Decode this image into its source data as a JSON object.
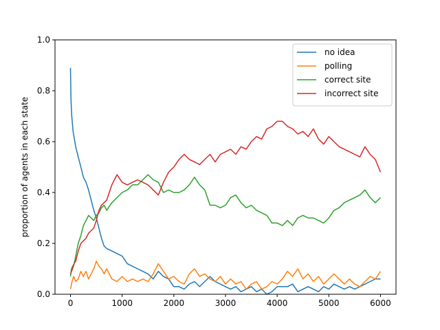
{
  "chart_data": {
    "type": "line",
    "title": "",
    "xlabel": "",
    "ylabel": "proportion of agents in each state",
    "xlim": [
      -300,
      6300
    ],
    "ylim": [
      0.0,
      1.0
    ],
    "xticks": [
      0,
      1000,
      2000,
      3000,
      4000,
      5000,
      6000
    ],
    "yticks": [
      0.0,
      0.2,
      0.4,
      0.6,
      0.8,
      1.0
    ],
    "xtick_labels": [
      "0",
      "1000",
      "2000",
      "3000",
      "4000",
      "5000",
      "6000"
    ],
    "ytick_labels": [
      "0.0",
      "0.2",
      "0.4",
      "0.6",
      "0.8",
      "1.0"
    ],
    "grid": false,
    "legend_position": "top-right",
    "series": [
      {
        "name": "no idea",
        "color": "#1f77b4",
        "x": [
          0,
          10,
          25,
          50,
          75,
          100,
          150,
          200,
          250,
          300,
          350,
          400,
          450,
          500,
          550,
          600,
          650,
          700,
          800,
          900,
          1000,
          1100,
          1200,
          1300,
          1400,
          1500,
          1600,
          1700,
          1800,
          1900,
          2000,
          2100,
          2200,
          2300,
          2400,
          2500,
          2600,
          2700,
          2800,
          2900,
          3000,
          3100,
          3200,
          3300,
          3400,
          3500,
          3600,
          3700,
          3800,
          3900,
          4000,
          4100,
          4200,
          4300,
          4400,
          4500,
          4600,
          4700,
          4800,
          4900,
          5000,
          5100,
          5200,
          5300,
          5400,
          5500,
          5600,
          5700,
          5800,
          5900,
          6000
        ],
        "y": [
          0.89,
          0.76,
          0.7,
          0.64,
          0.61,
          0.58,
          0.54,
          0.5,
          0.46,
          0.44,
          0.41,
          0.37,
          0.33,
          0.3,
          0.26,
          0.22,
          0.19,
          0.18,
          0.17,
          0.16,
          0.15,
          0.12,
          0.11,
          0.1,
          0.09,
          0.08,
          0.06,
          0.09,
          0.07,
          0.06,
          0.03,
          0.03,
          0.02,
          0.04,
          0.05,
          0.03,
          0.05,
          0.07,
          0.05,
          0.04,
          0.03,
          0.02,
          0.03,
          0.01,
          0.02,
          0.03,
          0.01,
          0.02,
          0.0,
          0.01,
          0.03,
          0.03,
          0.03,
          0.04,
          0.01,
          0.02,
          0.03,
          0.02,
          0.01,
          0.03,
          0.02,
          0.04,
          0.03,
          0.02,
          0.03,
          0.02,
          0.03,
          0.04,
          0.05,
          0.06,
          0.06
        ]
      },
      {
        "name": "polling",
        "color": "#ff7f0e",
        "x": [
          0,
          30,
          60,
          100,
          150,
          200,
          250,
          300,
          350,
          400,
          450,
          500,
          550,
          600,
          650,
          700,
          800,
          900,
          1000,
          1100,
          1200,
          1300,
          1400,
          1500,
          1600,
          1700,
          1800,
          1900,
          2000,
          2100,
          2200,
          2300,
          2400,
          2500,
          2600,
          2700,
          2800,
          2900,
          3000,
          3100,
          3200,
          3300,
          3400,
          3500,
          3600,
          3700,
          3800,
          3900,
          4000,
          4100,
          4200,
          4300,
          4400,
          4500,
          4600,
          4700,
          4800,
          4900,
          5000,
          5100,
          5200,
          5300,
          5400,
          5500,
          5600,
          5700,
          5800,
          5900,
          6000
        ],
        "y": [
          0.02,
          0.05,
          0.07,
          0.05,
          0.06,
          0.09,
          0.07,
          0.09,
          0.06,
          0.08,
          0.1,
          0.13,
          0.11,
          0.1,
          0.08,
          0.1,
          0.06,
          0.05,
          0.07,
          0.05,
          0.06,
          0.05,
          0.06,
          0.05,
          0.08,
          0.12,
          0.09,
          0.06,
          0.07,
          0.05,
          0.04,
          0.08,
          0.1,
          0.07,
          0.08,
          0.06,
          0.05,
          0.07,
          0.04,
          0.06,
          0.04,
          0.05,
          0.02,
          0.04,
          0.05,
          0.02,
          0.03,
          0.05,
          0.04,
          0.06,
          0.09,
          0.07,
          0.1,
          0.06,
          0.08,
          0.05,
          0.07,
          0.04,
          0.06,
          0.08,
          0.06,
          0.04,
          0.06,
          0.04,
          0.03,
          0.05,
          0.07,
          0.06,
          0.09
        ]
      },
      {
        "name": "correct site",
        "color": "#2ca02c",
        "x": [
          0,
          20,
          40,
          70,
          100,
          150,
          200,
          250,
          300,
          350,
          400,
          450,
          500,
          550,
          600,
          650,
          700,
          800,
          900,
          1000,
          1100,
          1200,
          1300,
          1400,
          1500,
          1600,
          1700,
          1800,
          1900,
          2000,
          2100,
          2200,
          2300,
          2400,
          2500,
          2600,
          2700,
          2800,
          2900,
          3000,
          3100,
          3200,
          3300,
          3400,
          3500,
          3600,
          3700,
          3800,
          3900,
          4000,
          4100,
          4200,
          4300,
          4400,
          4500,
          4600,
          4700,
          4800,
          4900,
          5000,
          5100,
          5200,
          5300,
          5400,
          5500,
          5600,
          5700,
          5800,
          5900,
          6000
        ],
        "y": [
          0.07,
          0.1,
          0.11,
          0.12,
          0.15,
          0.2,
          0.23,
          0.27,
          0.29,
          0.31,
          0.3,
          0.29,
          0.31,
          0.32,
          0.34,
          0.35,
          0.33,
          0.36,
          0.38,
          0.4,
          0.41,
          0.43,
          0.43,
          0.45,
          0.47,
          0.45,
          0.44,
          0.4,
          0.41,
          0.4,
          0.4,
          0.41,
          0.43,
          0.46,
          0.43,
          0.41,
          0.35,
          0.35,
          0.34,
          0.35,
          0.38,
          0.39,
          0.36,
          0.34,
          0.35,
          0.33,
          0.32,
          0.31,
          0.28,
          0.28,
          0.27,
          0.29,
          0.27,
          0.3,
          0.31,
          0.3,
          0.3,
          0.29,
          0.28,
          0.3,
          0.33,
          0.34,
          0.36,
          0.37,
          0.38,
          0.39,
          0.41,
          0.38,
          0.36,
          0.38
        ]
      },
      {
        "name": "incorrect site",
        "color": "#d62728",
        "x": [
          0,
          20,
          40,
          70,
          100,
          150,
          200,
          250,
          300,
          350,
          400,
          450,
          500,
          550,
          600,
          650,
          700,
          800,
          900,
          1000,
          1100,
          1200,
          1300,
          1400,
          1500,
          1600,
          1700,
          1800,
          1900,
          2000,
          2100,
          2200,
          2300,
          2400,
          2500,
          2600,
          2700,
          2800,
          2900,
          3000,
          3100,
          3200,
          3300,
          3400,
          3500,
          3600,
          3700,
          3800,
          3900,
          4000,
          4100,
          4200,
          4300,
          4400,
          4500,
          4600,
          4700,
          4800,
          4900,
          5000,
          5100,
          5200,
          5300,
          5400,
          5500,
          5600,
          5700,
          5800,
          5900,
          6000
        ],
        "y": [
          0.08,
          0.09,
          0.1,
          0.12,
          0.13,
          0.17,
          0.2,
          0.21,
          0.22,
          0.24,
          0.25,
          0.26,
          0.29,
          0.33,
          0.35,
          0.36,
          0.37,
          0.43,
          0.47,
          0.44,
          0.43,
          0.44,
          0.45,
          0.44,
          0.43,
          0.41,
          0.39,
          0.44,
          0.48,
          0.5,
          0.53,
          0.55,
          0.53,
          0.52,
          0.51,
          0.53,
          0.55,
          0.52,
          0.55,
          0.56,
          0.57,
          0.55,
          0.58,
          0.57,
          0.6,
          0.62,
          0.61,
          0.65,
          0.66,
          0.68,
          0.68,
          0.66,
          0.65,
          0.63,
          0.64,
          0.62,
          0.65,
          0.61,
          0.59,
          0.62,
          0.6,
          0.58,
          0.57,
          0.56,
          0.55,
          0.54,
          0.58,
          0.55,
          0.53,
          0.48
        ]
      }
    ]
  }
}
